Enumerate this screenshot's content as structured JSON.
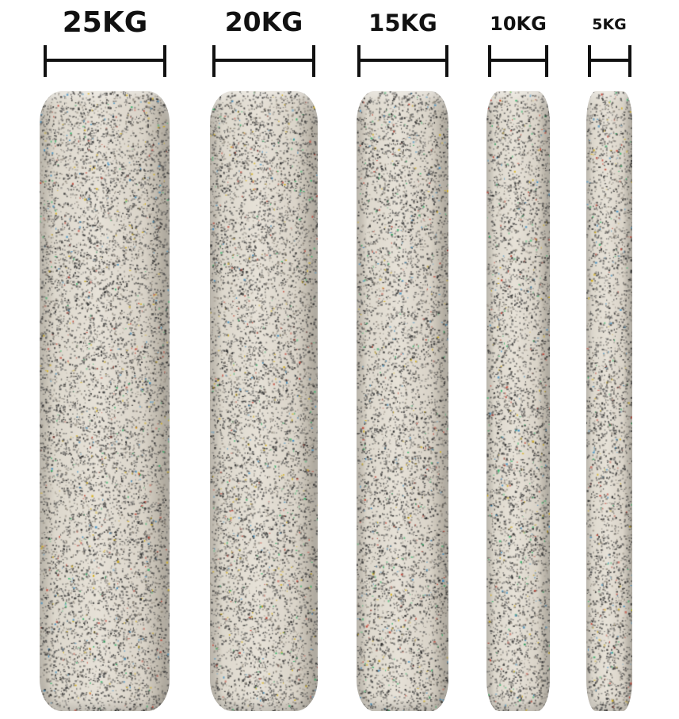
{
  "plates": [
    {
      "label": "25KG"
    },
    {
      "label": "20KG"
    },
    {
      "label": "15KG"
    },
    {
      "label": "10KG"
    },
    {
      "label": "5KG"
    }
  ],
  "colors": {
    "rubber_base": "#e2ddd2",
    "speckles": [
      "#2b2b2b",
      "#555555",
      "#8a8378",
      "#c0392b",
      "#2e86c1",
      "#d4ac0d",
      "#27ae60"
    ],
    "text": "#111111"
  }
}
